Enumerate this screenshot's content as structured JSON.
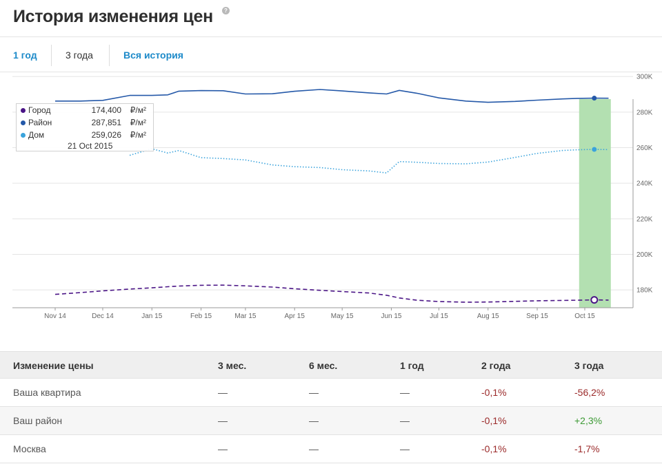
{
  "header": {
    "title": "История изменения цен",
    "help_icon": "question-circle-icon"
  },
  "tabs": [
    {
      "label": "1 год",
      "active": false
    },
    {
      "label": "3 года",
      "active": true
    },
    {
      "label": "Вся история",
      "active": false
    }
  ],
  "chart_data": {
    "type": "line",
    "x": [
      "2014-10-24",
      "2014-11-15",
      "2014-12-01",
      "2014-12-15",
      "2015-01-01",
      "2015-01-15",
      "2015-01-25",
      "2015-02-01",
      "2015-02-15",
      "2015-03-01",
      "2015-03-15",
      "2015-04-01",
      "2015-04-15",
      "2015-05-01",
      "2015-05-15",
      "2015-06-01",
      "2015-06-12",
      "2015-06-20",
      "2015-07-01",
      "2015-07-15",
      "2015-08-01",
      "2015-08-15",
      "2015-09-01",
      "2015-09-15",
      "2015-10-01",
      "2015-10-10",
      "2015-10-21",
      "2015-10-30"
    ],
    "x_ticks": [
      "Nov 14",
      "Dec 14",
      "Jan 15",
      "Feb 15",
      "Mar 15",
      "Apr 15",
      "May 15",
      "Jun 15",
      "Jul 15",
      "Aug 15",
      "Sep 15",
      "Oct 15"
    ],
    "y_ticks": [
      "180K",
      "200K",
      "220K",
      "240K",
      "260K",
      "280K",
      "300K"
    ],
    "ylim": [
      170000,
      302000
    ],
    "grid": true,
    "highlight_date": "2015-10-21",
    "series": [
      {
        "name": "Город",
        "color": "#4a1486",
        "style": "dashed",
        "values": [
          null,
          177500,
          178500,
          179500,
          180500,
          181200,
          181800,
          182200,
          182600,
          182700,
          182300,
          181600,
          180700,
          179800,
          179100,
          178300,
          177000,
          175500,
          174200,
          173500,
          173100,
          173200,
          173600,
          173900,
          174100,
          174200,
          174400,
          174300
        ]
      },
      {
        "name": "Район",
        "color": "#2458a8",
        "style": "solid",
        "values": [
          null,
          286200,
          286200,
          286600,
          289400,
          289400,
          289700,
          291800,
          292100,
          292000,
          290200,
          290300,
          291700,
          292700,
          291900,
          290800,
          290200,
          292200,
          290600,
          288000,
          286200,
          285500,
          286000,
          286700,
          287400,
          287700,
          287851,
          287800
        ]
      },
      {
        "name": "Дом",
        "color": "#3aa3dc",
        "style": "dotted",
        "values": [
          null,
          null,
          null,
          null,
          255700,
          259400,
          257000,
          258400,
          254400,
          253900,
          253100,
          250300,
          249300,
          248800,
          247600,
          246900,
          245800,
          252200,
          251800,
          251100,
          250900,
          251900,
          254500,
          256800,
          258400,
          258800,
          259026,
          258900
        ]
      }
    ]
  },
  "tooltip": {
    "rows": [
      {
        "name": "Город",
        "value": "174,400",
        "unit": "₽/м²",
        "color": "#4a1486"
      },
      {
        "name": "Район",
        "value": "287,851",
        "unit": "₽/м²",
        "color": "#2458a8"
      },
      {
        "name": "Дом",
        "value": "259,026",
        "unit": "₽/м²",
        "color": "#3aa3dc"
      }
    ],
    "date": "21 Oct 2015"
  },
  "table": {
    "headers": [
      "Изменение цены",
      "3 мес.",
      "6 мес.",
      "1 год",
      "2 года",
      "3 года"
    ],
    "rows": [
      {
        "cells": [
          "Ваша квартира",
          "—",
          "—",
          "—",
          "-0,1%",
          "-56,2%"
        ]
      },
      {
        "cells": [
          "Ваш район",
          "—",
          "—",
          "—",
          "-0,1%",
          "+2,3%"
        ]
      },
      {
        "cells": [
          "Москва",
          "—",
          "—",
          "—",
          "-0,1%",
          "-1,7%"
        ]
      }
    ]
  }
}
